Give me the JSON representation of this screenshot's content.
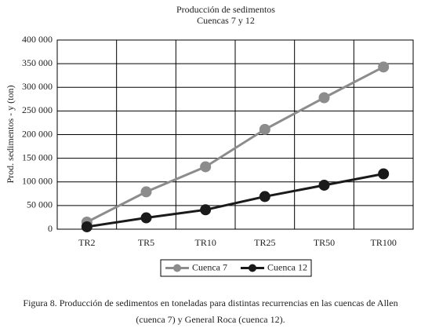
{
  "chart_data": {
    "type": "line",
    "title": "Producción de sedimentos",
    "subtitle": "Cuencas 7 y 12",
    "y_label": "Prod. sedimentos - y (ton)",
    "categories": [
      "TR2",
      "TR5",
      "TR10",
      "TR25",
      "TR50",
      "TR100"
    ],
    "series": [
      {
        "name": "Cuenca 7",
        "color": "#8c8c8c",
        "values": [
          15000,
          79000,
          132000,
          211000,
          278000,
          343000
        ]
      },
      {
        "name": "Cuenca 12",
        "color": "#1a1a1a",
        "values": [
          5000,
          24000,
          41000,
          69000,
          93000,
          117000
        ]
      }
    ],
    "ylim": [
      0,
      400000
    ],
    "yticks": [
      0,
      {
        "value": 50000,
        "label": "50 000"
      },
      {
        "value": 100000,
        "label": "100 000"
      },
      {
        "value": 150000,
        "label": "150 000"
      },
      {
        "value": 200000,
        "label": "200 000"
      },
      {
        "value": 250000,
        "label": "250 000"
      },
      {
        "value": 300000,
        "label": "300 000"
      },
      {
        "value": 350000,
        "label": "350 000"
      },
      {
        "value": 400000,
        "label": "400 000"
      }
    ],
    "grid": true,
    "legend": "bottom",
    "caption": "Figura 8. Producción de sedimentos en toneladas para distintas recurrencias en las cuencas de Allen (cuenca 7) y General Roca (cuenca 12)."
  }
}
